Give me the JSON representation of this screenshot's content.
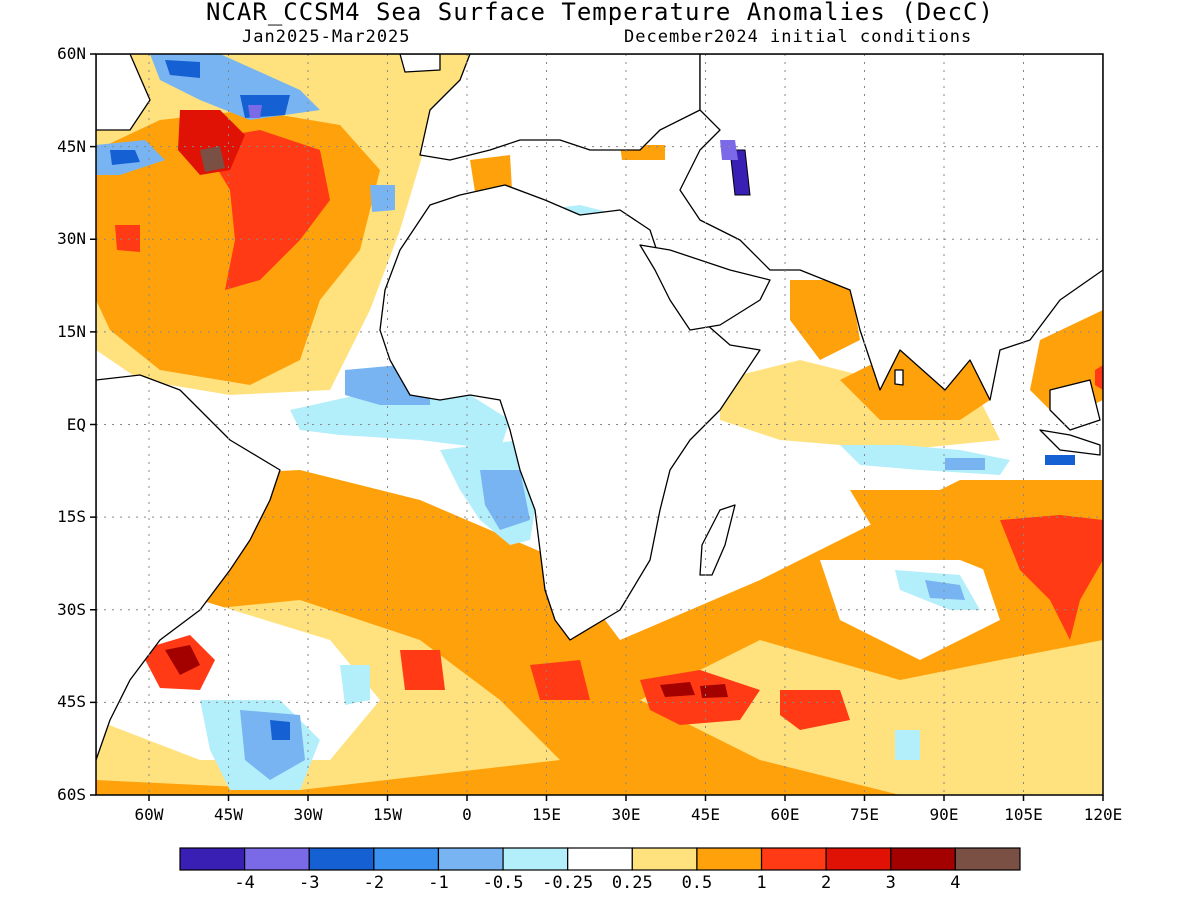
{
  "title": "NCAR_CCSM4 Sea Surface Temperature Anomalies (DecC)",
  "period": "Jan2025-Mar2025",
  "initial_conditions": "December2024 initial conditions",
  "map": {
    "lon_range": [
      -70,
      120
    ],
    "lat_range": [
      -60,
      60
    ],
    "lat_labels": [
      "60N",
      "45N",
      "30N",
      "15N",
      "EQ",
      "15S",
      "30S",
      "45S",
      "60S"
    ],
    "lon_labels": [
      "60W",
      "45W",
      "30W",
      "15W",
      "0",
      "15E",
      "30E",
      "45E",
      "60E",
      "75E",
      "90E",
      "105E",
      "120E"
    ],
    "grid": "dotted",
    "land_color": "#ffffff",
    "coastline_color": "#000000"
  },
  "colorbar": {
    "colors": [
      "#3a1fb4",
      "#7b6ae8",
      "#1560d2",
      "#3b91f0",
      "#78b4f2",
      "#b3effa",
      "#ffffff",
      "#ffe27e",
      "#ffa10b",
      "#ff3a14",
      "#e01205",
      "#a30000",
      "#7a4f44"
    ],
    "labels": [
      "-4",
      "-3",
      "-2",
      "-1",
      "-0.5",
      "-0.25",
      "0.25",
      "0.5",
      "1",
      "2",
      "3",
      "4"
    ]
  }
}
